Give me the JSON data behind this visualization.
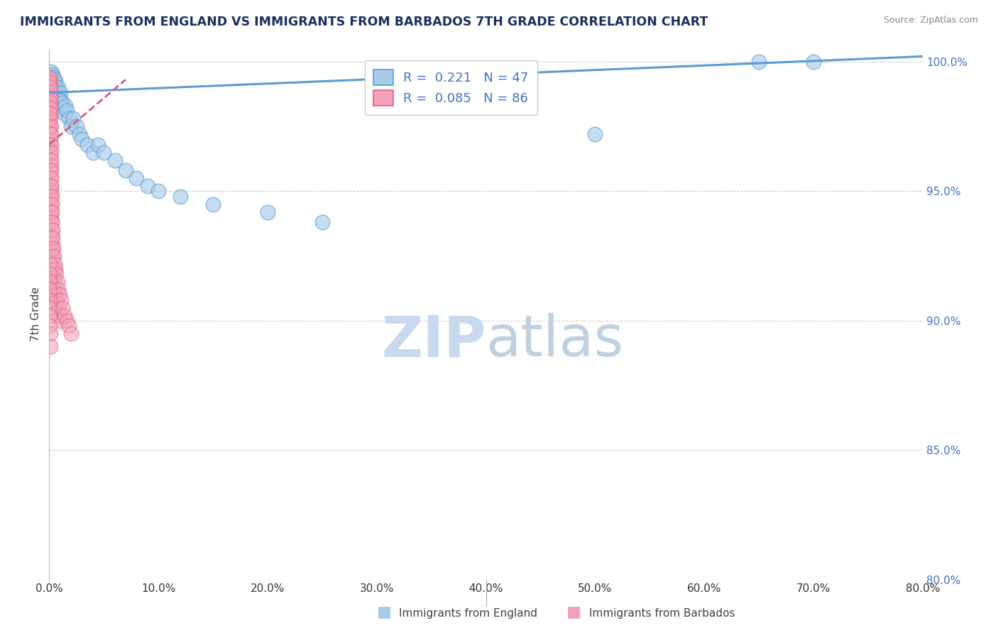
{
  "title": "IMMIGRANTS FROM ENGLAND VS IMMIGRANTS FROM BARBADOS 7TH GRADE CORRELATION CHART",
  "source": "Source: ZipAtlas.com",
  "ylabel": "7th Grade",
  "legend_england": "Immigrants from England",
  "legend_barbados": "Immigrants from Barbados",
  "R_england": 0.221,
  "N_england": 47,
  "R_barbados": 0.085,
  "N_barbados": 86,
  "color_england": "#A8CCEA",
  "color_barbados": "#F4A0B8",
  "color_edge_england": "#5B9BD5",
  "color_edge_barbados": "#E06080",
  "color_line_england": "#5B9BD5",
  "color_line_barbados": "#D45B7A",
  "color_title": "#1A3060",
  "color_source": "#888888",
  "color_ytick": "#4472C4",
  "color_watermark": "#C8D8EE",
  "xlim": [
    0.0,
    80.0
  ],
  "ylim": [
    80.0,
    100.5
  ],
  "y_ticks": [
    80.0,
    85.0,
    90.0,
    95.0,
    100.0
  ],
  "x_ticks": [
    0.0,
    10.0,
    20.0,
    30.0,
    40.0,
    50.0,
    60.0,
    70.0,
    80.0
  ],
  "england_x": [
    0.1,
    0.15,
    0.2,
    0.25,
    0.3,
    0.35,
    0.4,
    0.45,
    0.5,
    0.55,
    0.6,
    0.65,
    0.7,
    0.75,
    0.8,
    0.85,
    0.9,
    0.95,
    1.0,
    1.1,
    1.2,
    1.3,
    1.4,
    1.5,
    1.6,
    1.8,
    2.0,
    2.2,
    2.5,
    2.8,
    3.0,
    3.5,
    4.0,
    4.5,
    5.0,
    6.0,
    7.0,
    8.0,
    9.0,
    10.0,
    12.0,
    15.0,
    20.0,
    25.0,
    50.0,
    65.0,
    70.0
  ],
  "england_y": [
    99.5,
    99.4,
    99.6,
    99.3,
    99.5,
    99.2,
    99.4,
    99.1,
    99.3,
    99.0,
    99.2,
    99.0,
    98.9,
    98.8,
    99.0,
    98.7,
    98.6,
    98.5,
    98.8,
    98.5,
    98.4,
    98.2,
    98.0,
    98.3,
    98.1,
    97.8,
    97.5,
    97.8,
    97.5,
    97.2,
    97.0,
    96.8,
    96.5,
    96.8,
    96.5,
    96.2,
    95.8,
    95.5,
    95.2,
    95.0,
    94.8,
    94.5,
    94.2,
    93.8,
    97.2,
    100.0,
    100.0
  ],
  "barbados_x": [
    0.02,
    0.03,
    0.04,
    0.05,
    0.05,
    0.06,
    0.06,
    0.07,
    0.07,
    0.08,
    0.08,
    0.09,
    0.09,
    0.1,
    0.1,
    0.1,
    0.11,
    0.11,
    0.12,
    0.12,
    0.13,
    0.13,
    0.14,
    0.14,
    0.15,
    0.15,
    0.15,
    0.16,
    0.16,
    0.17,
    0.17,
    0.18,
    0.18,
    0.19,
    0.19,
    0.2,
    0.2,
    0.2,
    0.21,
    0.21,
    0.22,
    0.22,
    0.23,
    0.24,
    0.25,
    0.25,
    0.26,
    0.27,
    0.28,
    0.3,
    0.3,
    0.32,
    0.35,
    0.38,
    0.4,
    0.42,
    0.45,
    0.48,
    0.5,
    0.55,
    0.6,
    0.65,
    0.7,
    0.75,
    0.8,
    0.85,
    0.9,
    0.95,
    1.0,
    1.1,
    1.2,
    1.4,
    1.6,
    1.8,
    2.0,
    0.05,
    0.05,
    0.06,
    0.06,
    0.07,
    0.07,
    0.08,
    0.08,
    0.09,
    0.1
  ],
  "barbados_y": [
    97.5,
    98.2,
    99.0,
    99.3,
    98.5,
    99.1,
    97.8,
    99.4,
    98.0,
    99.2,
    97.5,
    98.8,
    97.2,
    99.0,
    98.4,
    96.8,
    98.6,
    97.0,
    98.2,
    96.5,
    97.8,
    96.2,
    98.0,
    95.8,
    97.5,
    96.0,
    95.5,
    97.2,
    95.2,
    96.8,
    95.0,
    96.5,
    94.8,
    96.2,
    94.5,
    95.8,
    94.2,
    95.5,
    94.0,
    95.2,
    93.8,
    94.8,
    93.5,
    94.5,
    93.2,
    94.2,
    93.0,
    93.8,
    92.8,
    93.5,
    92.5,
    93.2,
    92.0,
    92.8,
    91.8,
    92.5,
    91.5,
    92.2,
    91.2,
    92.0,
    91.0,
    91.8,
    90.8,
    91.5,
    90.5,
    91.2,
    90.2,
    91.0,
    90.0,
    90.8,
    90.5,
    90.2,
    90.0,
    89.8,
    89.5,
    92.2,
    91.8,
    91.5,
    91.2,
    90.8,
    90.5,
    90.2,
    89.8,
    89.5,
    89.0
  ]
}
